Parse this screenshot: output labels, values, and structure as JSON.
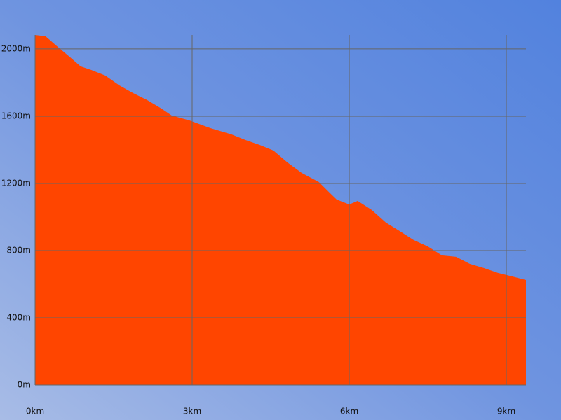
{
  "chart_data": {
    "type": "area",
    "x": [
      0,
      0.2,
      0.4,
      0.67,
      0.87,
      1.07,
      1.34,
      1.61,
      1.87,
      2.14,
      2.41,
      2.61,
      2.95,
      3.35,
      3.75,
      4.02,
      4.29,
      4.55,
      4.82,
      5.09,
      5.42,
      5.62,
      5.76,
      6.0,
      6.16,
      6.43,
      6.7,
      6.96,
      7.23,
      7.5,
      7.77,
      8.04,
      8.3,
      8.57,
      8.84,
      9.11,
      9.375
    ],
    "values": [
      2083,
      2075,
      2021,
      1950,
      1896,
      1875,
      1842,
      1783,
      1738,
      1696,
      1646,
      1604,
      1575,
      1529,
      1492,
      1458,
      1429,
      1396,
      1325,
      1263,
      1208,
      1146,
      1104,
      1075,
      1096,
      1042,
      967,
      917,
      863,
      825,
      771,
      763,
      721,
      696,
      667,
      646,
      625
    ],
    "color": "#ff4500",
    "xlim": [
      0,
      9.375
    ],
    "ylim": [
      0,
      2083
    ],
    "xticks": [
      {
        "value": 0,
        "label": "0km"
      },
      {
        "value": 3,
        "label": "3km"
      },
      {
        "value": 6,
        "label": "6km"
      },
      {
        "value": 9,
        "label": "9km"
      }
    ],
    "yticks": [
      {
        "value": 0,
        "label": "0m"
      },
      {
        "value": 400,
        "label": "400m"
      },
      {
        "value": 800,
        "label": "800m"
      },
      {
        "value": 1200,
        "label": "1200m"
      },
      {
        "value": 1600,
        "label": "1600m"
      },
      {
        "value": 2000,
        "label": "2000m"
      }
    ],
    "grid": true
  }
}
